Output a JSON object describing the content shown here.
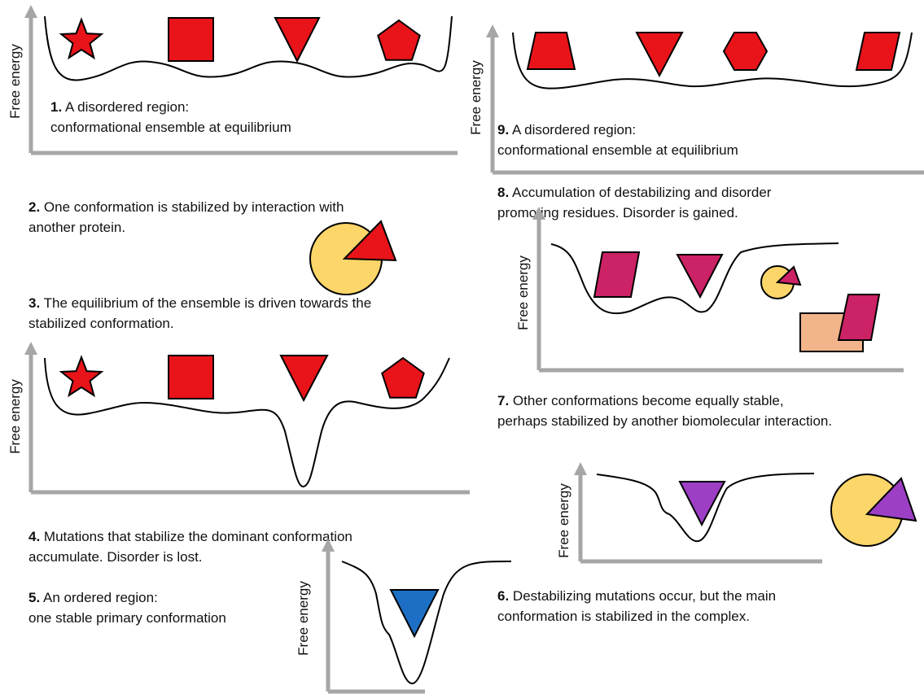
{
  "panels": [
    {
      "y_label": "Free energy"
    },
    {
      "y_label": "Free energy"
    },
    {
      "y_label": "Free energy"
    },
    {
      "y_label": "Free energy"
    },
    {
      "y_label": "Free energy"
    },
    {
      "y_label": "Free energy"
    }
  ],
  "steps": [
    {
      "number": "1.",
      "lines": [
        "A disordered region:",
        "conformational ensemble at equilibrium"
      ]
    },
    {
      "number": "2.",
      "lines": [
        "One conformation is stabilized by interaction with",
        "another protein."
      ]
    },
    {
      "number": "3.",
      "lines": [
        "The equilibrium of the ensemble is driven towards the",
        "stabilized conformation."
      ]
    },
    {
      "number": "4.",
      "lines": [
        "Mutations that stabilize the dominant conformation",
        "accumulate. Disorder is lost."
      ]
    },
    {
      "number": "5.",
      "lines": [
        "An ordered region:",
        "one stable primary conformation"
      ]
    },
    {
      "number": "6.",
      "lines": [
        "Destabilizing mutations occur, but the main",
        "conformation is stabilized in the complex."
      ]
    },
    {
      "number": "7.",
      "lines": [
        "Other conformations become equally stable,",
        "perhaps stabilized by another biomolecular interaction."
      ]
    },
    {
      "number": "8.",
      "lines": [
        "Accumulation of destabilizing and disorder",
        "promoting residues. Disorder is gained."
      ]
    },
    {
      "number": "9.",
      "lines": [
        "A disordered region:",
        "conformational ensemble at equilibrium"
      ]
    }
  ]
}
